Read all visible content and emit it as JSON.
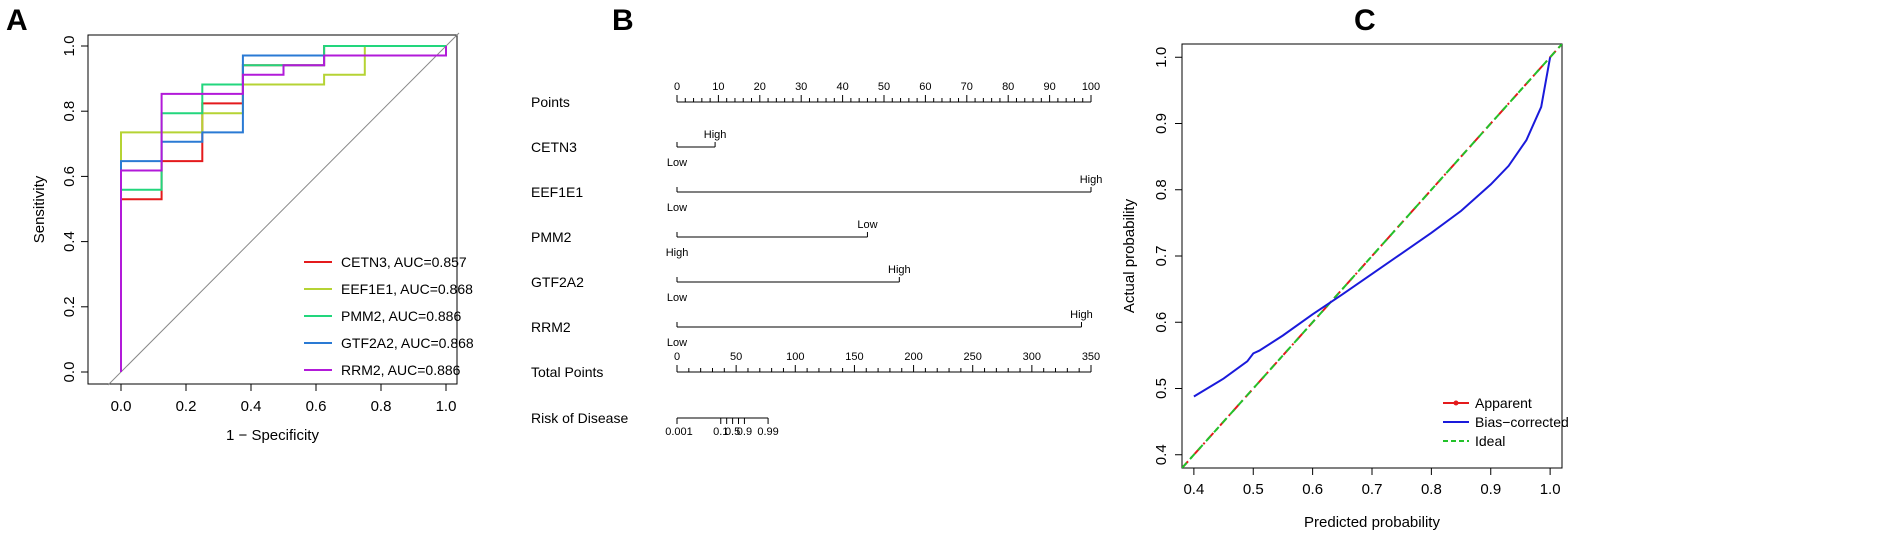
{
  "figure": {
    "panel_labels": [
      "A",
      "B",
      "C"
    ]
  },
  "chart_data": [
    {
      "panel": "A",
      "type": "line",
      "xlabel": "1 − Specificity",
      "ylabel": "Sensitivity",
      "xlim": [
        0,
        1
      ],
      "ylim": [
        0,
        1
      ],
      "xticks": [
        "0.0",
        "0.2",
        "0.4",
        "0.6",
        "0.8",
        "1.0"
      ],
      "yticks": [
        "0.0",
        "0.2",
        "0.4",
        "0.6",
        "0.8",
        "1.0"
      ],
      "grid": false,
      "legend_position": "bottom-right",
      "reference_line": "diagonal",
      "series": [
        {
          "name": "CETN3, AUC=0.857",
          "color": "#e41a1c",
          "points": [
            [
              0,
              0
            ],
            [
              0,
              0.53
            ],
            [
              0.125,
              0.53
            ],
            [
              0.125,
              0.647
            ],
            [
              0.25,
              0.647
            ],
            [
              0.25,
              0.824
            ],
            [
              0.375,
              0.824
            ],
            [
              0.375,
              0.941
            ],
            [
              0.625,
              0.941
            ],
            [
              0.625,
              1
            ],
            [
              1,
              1
            ]
          ]
        },
        {
          "name": "EEF1E1, AUC=0.868",
          "color": "#b5d334",
          "points": [
            [
              0,
              0
            ],
            [
              0,
              0.735
            ],
            [
              0.25,
              0.735
            ],
            [
              0.25,
              0.794
            ],
            [
              0.375,
              0.794
            ],
            [
              0.375,
              0.882
            ],
            [
              0.625,
              0.882
            ],
            [
              0.625,
              0.912
            ],
            [
              0.75,
              0.912
            ],
            [
              0.75,
              1
            ],
            [
              1,
              1
            ]
          ]
        },
        {
          "name": "PMM2, AUC=0.886",
          "color": "#22d67d",
          "points": [
            [
              0,
              0
            ],
            [
              0,
              0.559
            ],
            [
              0.125,
              0.559
            ],
            [
              0.125,
              0.794
            ],
            [
              0.25,
              0.794
            ],
            [
              0.25,
              0.882
            ],
            [
              0.375,
              0.882
            ],
            [
              0.375,
              0.941
            ],
            [
              0.625,
              0.941
            ],
            [
              0.625,
              1
            ],
            [
              1,
              1
            ]
          ]
        },
        {
          "name": "GTF2A2, AUC=0.868",
          "color": "#2a7ad4",
          "points": [
            [
              0,
              0
            ],
            [
              0,
              0.647
            ],
            [
              0.125,
              0.647
            ],
            [
              0.125,
              0.706
            ],
            [
              0.25,
              0.706
            ],
            [
              0.25,
              0.735
            ],
            [
              0.375,
              0.735
            ],
            [
              0.375,
              0.971
            ],
            [
              1,
              0.971
            ],
            [
              1,
              1
            ]
          ]
        },
        {
          "name": "RRM2, AUC=0.886",
          "color": "#b21ad9",
          "points": [
            [
              0,
              0
            ],
            [
              0,
              0.618
            ],
            [
              0.125,
              0.618
            ],
            [
              0.125,
              0.853
            ],
            [
              0.375,
              0.853
            ],
            [
              0.375,
              0.912
            ],
            [
              0.5,
              0.912
            ],
            [
              0.5,
              0.941
            ],
            [
              0.625,
              0.941
            ],
            [
              0.625,
              0.971
            ],
            [
              1,
              0.971
            ],
            [
              1,
              1
            ]
          ]
        }
      ]
    },
    {
      "panel": "B",
      "type": "nomogram",
      "rows": [
        {
          "label": "Points",
          "kind": "axis",
          "ticks": [
            "0",
            "10",
            "20",
            "30",
            "40",
            "50",
            "60",
            "70",
            "80",
            "90",
            "100"
          ],
          "max": 100
        },
        {
          "label": "CETN3",
          "kind": "variable",
          "low_label": "Low",
          "high_label": "High",
          "left_value": 0,
          "right_value": 9.2,
          "above": "right"
        },
        {
          "label": "EEF1E1",
          "kind": "variable",
          "low_label": "Low",
          "high_label": "High",
          "left_value": 0,
          "right_value": 100,
          "above": "right"
        },
        {
          "label": "PMM2",
          "kind": "variable",
          "low_label": "High",
          "high_label": "Low",
          "left_value": 0,
          "right_value": 46,
          "above": "right"
        },
        {
          "label": "GTF2A2",
          "kind": "variable",
          "low_label": "Low",
          "high_label": "High",
          "left_value": 0,
          "right_value": 53.7,
          "above": "right"
        },
        {
          "label": "RRM2",
          "kind": "variable",
          "low_label": "Low",
          "high_label": "High",
          "left_value": 0,
          "right_value": 97.7,
          "above": "right"
        },
        {
          "label": "Total Points",
          "kind": "axis",
          "ticks": [
            "0",
            "50",
            "100",
            "150",
            "200",
            "250",
            "300",
            "350"
          ],
          "max": 350
        },
        {
          "label": "Risk of Disease",
          "kind": "risk",
          "tick_labels": [
            "0.001",
            "0.1",
            "0.5",
            "0.9",
            "0.99"
          ],
          "tick_positions_points": [
            0,
            37,
            47,
            57,
            77
          ]
        }
      ]
    },
    {
      "panel": "C",
      "type": "line",
      "xlabel": "Predicted probability",
      "ylabel": "Actual probability",
      "xlim": [
        0.38,
        1.02
      ],
      "ylim": [
        0.38,
        1.02
      ],
      "xticks": [
        "0.4",
        "0.5",
        "0.6",
        "0.7",
        "0.8",
        "0.9",
        "1.0"
      ],
      "yticks": [
        "0.4",
        "0.5",
        "0.6",
        "0.7",
        "0.8",
        "0.9",
        "1.0"
      ],
      "grid": false,
      "legend_position": "bottom-right",
      "series": [
        {
          "name": "Apparent",
          "color": "#e41a1c",
          "style": "dash-dot",
          "points": [
            [
              0.38,
              0.38
            ],
            [
              1.02,
              1.02
            ]
          ]
        },
        {
          "name": "Bias−corrected",
          "color": "#1a1adb",
          "style": "solid",
          "points": [
            [
              0.4,
              0.488
            ],
            [
              0.45,
              0.515
            ],
            [
              0.49,
              0.541
            ],
            [
              0.5,
              0.553
            ],
            [
              0.51,
              0.557
            ],
            [
              0.55,
              0.58
            ],
            [
              0.6,
              0.612
            ],
            [
              0.65,
              0.642
            ],
            [
              0.7,
              0.673
            ],
            [
              0.75,
              0.704
            ],
            [
              0.8,
              0.735
            ],
            [
              0.85,
              0.768
            ],
            [
              0.9,
              0.808
            ],
            [
              0.93,
              0.836
            ],
            [
              0.96,
              0.875
            ],
            [
              0.985,
              0.925
            ],
            [
              1.0,
              1.0
            ]
          ]
        },
        {
          "name": "Ideal",
          "color": "#22c22a",
          "style": "dashed",
          "points": [
            [
              0.38,
              0.38
            ],
            [
              1.02,
              1.02
            ]
          ]
        }
      ]
    }
  ]
}
